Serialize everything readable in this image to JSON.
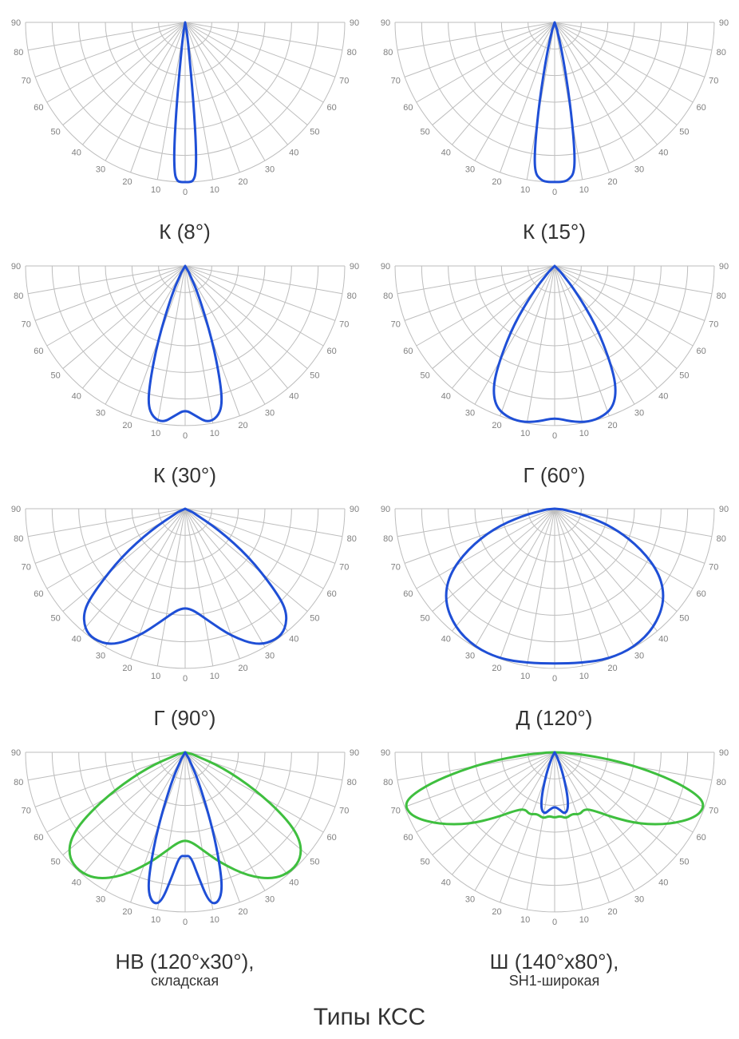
{
  "page_title": "Типы КСС",
  "grid_color": "#bdbdbd",
  "tick_label_color": "#808080",
  "tick_label_fontsize": 11,
  "chart_background": "#ffffff",
  "curve_width": 3,
  "radial_rings": 6,
  "angle_ticks": [
    90,
    80,
    70,
    60,
    50,
    40,
    30,
    20,
    10,
    0,
    10,
    20,
    30,
    40,
    50,
    60,
    70,
    80,
    90
  ],
  "colors": {
    "blue": "#1f4fd6",
    "green": "#3fbf3f"
  },
  "charts": [
    {
      "title": "К (8°)",
      "curves": [
        {
          "color": "#1f4fd6",
          "points": [
            [
              -10,
              0.05
            ],
            [
              -8,
              0.15
            ],
            [
              -6,
              0.5
            ],
            [
              -5,
              0.8
            ],
            [
              -4,
              0.95
            ],
            [
              -3,
              0.99
            ],
            [
              -2,
              1.0
            ],
            [
              0,
              1.0
            ],
            [
              2,
              1.0
            ],
            [
              3,
              0.99
            ],
            [
              4,
              0.95
            ],
            [
              5,
              0.8
            ],
            [
              6,
              0.5
            ],
            [
              8,
              0.15
            ],
            [
              10,
              0.05
            ]
          ]
        }
      ]
    },
    {
      "title": "К (15°)",
      "curves": [
        {
          "color": "#1f4fd6",
          "points": [
            [
              -18,
              0.05
            ],
            [
              -14,
              0.2
            ],
            [
              -11,
              0.5
            ],
            [
              -9,
              0.8
            ],
            [
              -7.5,
              0.95
            ],
            [
              -5,
              0.99
            ],
            [
              -3,
              1.0
            ],
            [
              0,
              1.0
            ],
            [
              3,
              1.0
            ],
            [
              5,
              0.99
            ],
            [
              7.5,
              0.95
            ],
            [
              9,
              0.8
            ],
            [
              11,
              0.5
            ],
            [
              14,
              0.2
            ],
            [
              18,
              0.05
            ]
          ]
        }
      ]
    },
    {
      "title": "К (30°)",
      "curves": [
        {
          "color": "#1f4fd6",
          "points": [
            [
              -30,
              0.05
            ],
            [
              -25,
              0.2
            ],
            [
              -20,
              0.5
            ],
            [
              -17,
              0.75
            ],
            [
              -15,
              0.9
            ],
            [
              -12,
              0.97
            ],
            [
              -8,
              0.99
            ],
            [
              -4,
              0.94
            ],
            [
              0,
              0.9
            ],
            [
              4,
              0.94
            ],
            [
              8,
              0.99
            ],
            [
              12,
              0.97
            ],
            [
              15,
              0.9
            ],
            [
              17,
              0.75
            ],
            [
              20,
              0.5
            ],
            [
              25,
              0.2
            ],
            [
              30,
              0.05
            ]
          ]
        }
      ]
    },
    {
      "title": "Г (60°)",
      "curves": [
        {
          "color": "#1f4fd6",
          "points": [
            [
              -45,
              0.05
            ],
            [
              -40,
              0.2
            ],
            [
              -35,
              0.45
            ],
            [
              -30,
              0.7
            ],
            [
              -27,
              0.85
            ],
            [
              -23,
              0.95
            ],
            [
              -18,
              0.99
            ],
            [
              -12,
              1.0
            ],
            [
              -6,
              0.98
            ],
            [
              0,
              0.95
            ],
            [
              6,
              0.98
            ],
            [
              12,
              1.0
            ],
            [
              18,
              0.99
            ],
            [
              23,
              0.95
            ],
            [
              27,
              0.85
            ],
            [
              30,
              0.7
            ],
            [
              35,
              0.45
            ],
            [
              40,
              0.2
            ],
            [
              45,
              0.05
            ]
          ]
        }
      ]
    },
    {
      "title": "Г (90°)",
      "curves": [
        {
          "color": "#1f4fd6",
          "points": [
            [
              -65,
              0.05
            ],
            [
              -58,
              0.25
            ],
            [
              -53,
              0.5
            ],
            [
              -48,
              0.75
            ],
            [
              -45,
              0.9
            ],
            [
              -40,
              0.98
            ],
            [
              -35,
              1.0
            ],
            [
              -28,
              0.97
            ],
            [
              -20,
              0.85
            ],
            [
              -12,
              0.72
            ],
            [
              -5,
              0.64
            ],
            [
              0,
              0.62
            ],
            [
              5,
              0.64
            ],
            [
              12,
              0.72
            ],
            [
              20,
              0.85
            ],
            [
              28,
              0.97
            ],
            [
              35,
              1.0
            ],
            [
              40,
              0.98
            ],
            [
              45,
              0.9
            ],
            [
              48,
              0.75
            ],
            [
              53,
              0.5
            ],
            [
              58,
              0.25
            ],
            [
              65,
              0.05
            ]
          ]
        }
      ]
    },
    {
      "title": "Д (120°)",
      "curves": [
        {
          "color": "#1f4fd6",
          "points": [
            [
              -85,
              0.05
            ],
            [
              -78,
              0.2
            ],
            [
              -72,
              0.4
            ],
            [
              -65,
              0.6
            ],
            [
              -58,
              0.78
            ],
            [
              -50,
              0.9
            ],
            [
              -40,
              0.97
            ],
            [
              -30,
              1.0
            ],
            [
              -20,
              1.0
            ],
            [
              -10,
              0.98
            ],
            [
              0,
              0.97
            ],
            [
              10,
              0.98
            ],
            [
              20,
              1.0
            ],
            [
              30,
              1.0
            ],
            [
              40,
              0.97
            ],
            [
              50,
              0.9
            ],
            [
              58,
              0.78
            ],
            [
              65,
              0.6
            ],
            [
              72,
              0.4
            ],
            [
              78,
              0.2
            ],
            [
              85,
              0.05
            ]
          ]
        }
      ]
    },
    {
      "title": "НВ (120°x30°),",
      "subtitle": "складская",
      "curves": [
        {
          "color": "#3fbf3f",
          "points": [
            [
              -75,
              0.05
            ],
            [
              -68,
              0.25
            ],
            [
              -62,
              0.5
            ],
            [
              -57,
              0.75
            ],
            [
              -53,
              0.9
            ],
            [
              -48,
              0.98
            ],
            [
              -42,
              1.0
            ],
            [
              -35,
              0.97
            ],
            [
              -27,
              0.87
            ],
            [
              -18,
              0.73
            ],
            [
              -10,
              0.62
            ],
            [
              -5,
              0.57
            ],
            [
              0,
              0.55
            ],
            [
              5,
              0.57
            ],
            [
              10,
              0.62
            ],
            [
              18,
              0.73
            ],
            [
              27,
              0.87
            ],
            [
              35,
              0.97
            ],
            [
              42,
              1.0
            ],
            [
              48,
              0.98
            ],
            [
              53,
              0.9
            ],
            [
              57,
              0.75
            ],
            [
              62,
              0.5
            ],
            [
              68,
              0.25
            ],
            [
              75,
              0.05
            ]
          ]
        },
        {
          "color": "#1f4fd6",
          "points": [
            [
              -30,
              0.05
            ],
            [
              -25,
              0.2
            ],
            [
              -20,
              0.5
            ],
            [
              -17,
              0.75
            ],
            [
              -15,
              0.9
            ],
            [
              -12,
              0.97
            ],
            [
              -9,
              0.95
            ],
            [
              -6,
              0.78
            ],
            [
              -3,
              0.65
            ],
            [
              0,
              0.65
            ],
            [
              3,
              0.65
            ],
            [
              6,
              0.78
            ],
            [
              9,
              0.95
            ],
            [
              12,
              0.97
            ],
            [
              15,
              0.9
            ],
            [
              17,
              0.75
            ],
            [
              20,
              0.5
            ],
            [
              25,
              0.2
            ],
            [
              30,
              0.05
            ]
          ]
        }
      ]
    },
    {
      "title": "Ш (140°x80°),",
      "subtitle": "SH1-широкая",
      "curves": [
        {
          "color": "#3fbf3f",
          "points": [
            [
              -88,
              0.05
            ],
            [
              -85,
              0.2
            ],
            [
              -82,
              0.4
            ],
            [
              -79,
              0.6
            ],
            [
              -76,
              0.8
            ],
            [
              -73,
              0.95
            ],
            [
              -70,
              1.0
            ],
            [
              -65,
              0.97
            ],
            [
              -58,
              0.85
            ],
            [
              -50,
              0.7
            ],
            [
              -42,
              0.55
            ],
            [
              -35,
              0.45
            ],
            [
              -28,
              0.4
            ],
            [
              -22,
              0.42
            ],
            [
              -16,
              0.4
            ],
            [
              -10,
              0.42
            ],
            [
              -5,
              0.4
            ],
            [
              0,
              0.41
            ],
            [
              5,
              0.4
            ],
            [
              10,
              0.42
            ],
            [
              16,
              0.4
            ],
            [
              22,
              0.42
            ],
            [
              28,
              0.4
            ],
            [
              35,
              0.45
            ],
            [
              42,
              0.55
            ],
            [
              50,
              0.7
            ],
            [
              58,
              0.85
            ],
            [
              65,
              0.97
            ],
            [
              70,
              1.0
            ],
            [
              73,
              0.95
            ],
            [
              76,
              0.8
            ],
            [
              79,
              0.6
            ],
            [
              82,
              0.4
            ],
            [
              85,
              0.2
            ],
            [
              88,
              0.05
            ]
          ]
        },
        {
          "color": "#1f4fd6",
          "points": [
            [
              -28,
              0.03
            ],
            [
              -23,
              0.1
            ],
            [
              -19,
              0.2
            ],
            [
              -16,
              0.3
            ],
            [
              -13,
              0.37
            ],
            [
              -9,
              0.39
            ],
            [
              -5,
              0.36
            ],
            [
              0,
              0.34
            ],
            [
              5,
              0.36
            ],
            [
              9,
              0.39
            ],
            [
              13,
              0.37
            ],
            [
              16,
              0.3
            ],
            [
              19,
              0.2
            ],
            [
              23,
              0.1
            ],
            [
              28,
              0.03
            ]
          ]
        }
      ]
    }
  ]
}
